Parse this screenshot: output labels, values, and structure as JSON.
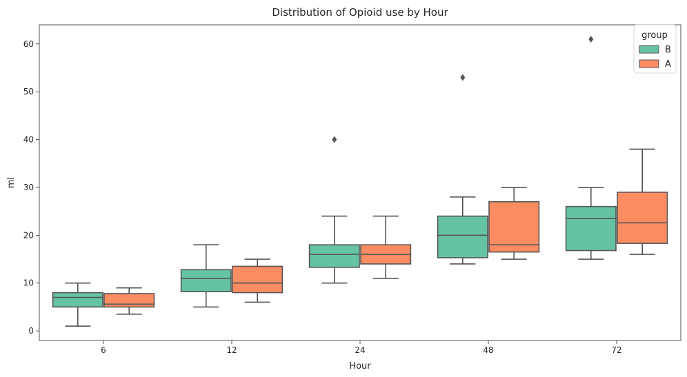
{
  "chart_data": {
    "type": "boxplot",
    "title": "Distribution of Opioid use by Hour",
    "xlabel": "Hour",
    "ylabel": "ml",
    "categories": [
      "6",
      "12",
      "24",
      "48",
      "72"
    ],
    "ylim": [
      -2,
      64
    ],
    "yticks": [
      0,
      10,
      20,
      30,
      40,
      50,
      60
    ],
    "grid": false,
    "legend": {
      "title": "group",
      "placement": "top-right"
    },
    "series": [
      {
        "name": "B",
        "color": "#66c2a5",
        "boxes": [
          {
            "whisker_low": 1,
            "q1": 5,
            "median": 7,
            "q3": 8,
            "whisker_high": 10,
            "outliers": []
          },
          {
            "whisker_low": 5,
            "q1": 8.2,
            "median": 11,
            "q3": 12.8,
            "whisker_high": 18,
            "outliers": []
          },
          {
            "whisker_low": 10,
            "q1": 13.3,
            "median": 16,
            "q3": 18,
            "whisker_high": 24,
            "outliers": [
              40
            ]
          },
          {
            "whisker_low": 14,
            "q1": 15.3,
            "median": 20,
            "q3": 24,
            "whisker_high": 28,
            "outliers": [
              53
            ]
          },
          {
            "whisker_low": 15,
            "q1": 16.8,
            "median": 23.5,
            "q3": 26,
            "whisker_high": 30,
            "outliers": [
              61
            ]
          }
        ]
      },
      {
        "name": "A",
        "color": "#fc8d62",
        "boxes": [
          {
            "whisker_low": 3.5,
            "q1": 5,
            "median": 5.6,
            "q3": 7.8,
            "whisker_high": 9,
            "outliers": []
          },
          {
            "whisker_low": 6,
            "q1": 8,
            "median": 10,
            "q3": 13.5,
            "whisker_high": 15,
            "outliers": []
          },
          {
            "whisker_low": 11,
            "q1": 14,
            "median": 16,
            "q3": 18,
            "whisker_high": 24,
            "outliers": []
          },
          {
            "whisker_low": 15,
            "q1": 16.5,
            "median": 18,
            "q3": 27,
            "whisker_high": 30,
            "outliers": []
          },
          {
            "whisker_low": 16,
            "q1": 18.3,
            "median": 22.6,
            "q3": 29,
            "whisker_high": 38,
            "outliers": []
          }
        ]
      }
    ]
  }
}
